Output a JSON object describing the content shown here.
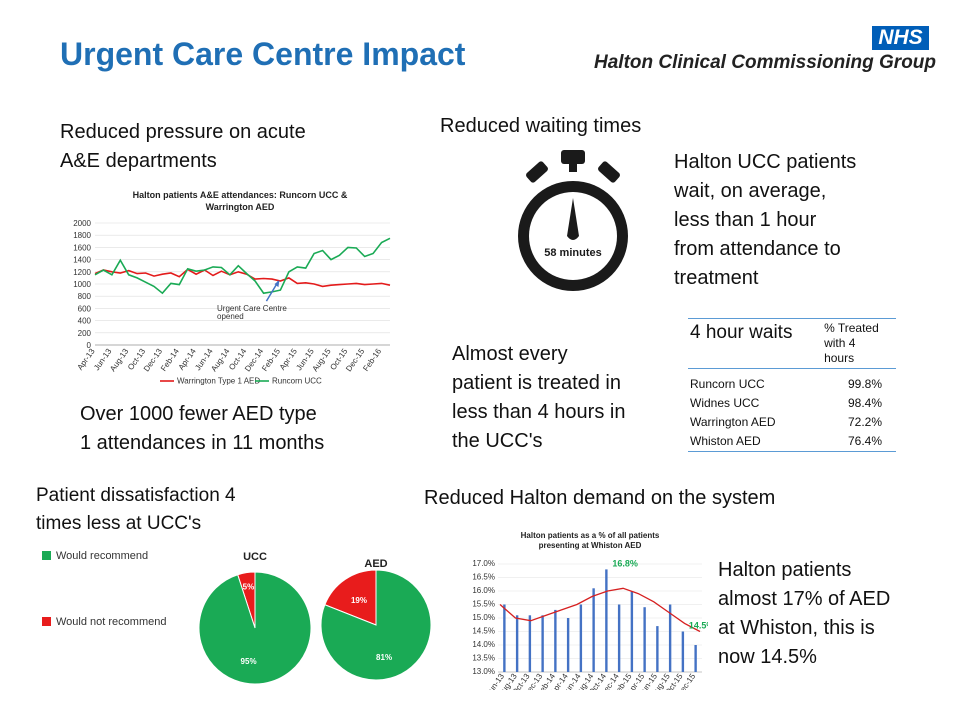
{
  "header": {
    "title": "Urgent Care Centre Impact",
    "nhs_badge": "NHS",
    "org_name": "Halton Clinical Commissioning Group"
  },
  "section1": {
    "heading_lines": [
      "Reduced pressure on acute",
      "A&E departments"
    ],
    "footer_lines": [
      "Over 1000 fewer AED type",
      "1 attendances in 11 months"
    ]
  },
  "section2": {
    "heading": "Reduced waiting times",
    "stopwatch_label": "58 minutes",
    "side_text_lines": [
      "Halton UCC patients",
      "wait, on average,",
      "less than 1 hour",
      "from attendance to",
      "treatment"
    ],
    "almost_lines": [
      "Almost every",
      "patient is treated in",
      "less than 4 hours in",
      "the UCC's"
    ]
  },
  "waits_table": {
    "title": "4 hour waits",
    "col_header_lines": [
      "% Treated",
      "with 4",
      "hours"
    ],
    "rows": [
      {
        "name": "Runcorn UCC",
        "value": "99.8%"
      },
      {
        "name": "Widnes UCC",
        "value": "98.4%"
      },
      {
        "name": "Warrington AED",
        "value": "72.2%"
      },
      {
        "name": "Whiston AED",
        "value": "76.4%"
      }
    ]
  },
  "section3": {
    "heading_lines": [
      "Patient dissatisfaction 4",
      "times less at UCC's"
    ],
    "legend": [
      {
        "label": "Would recommend",
        "color": "#1aaa55"
      },
      {
        "label": "Would not recommend",
        "color": "#e81c1c"
      }
    ]
  },
  "section4": {
    "heading": "Reduced Halton demand on the system",
    "side_text_lines": [
      "Halton patients",
      "almost 17% of AED",
      "at Whiston, this is",
      "now 14.5%"
    ]
  },
  "chart_data": [
    {
      "type": "line",
      "title_lines": [
        "Halton patients A&E attendances: Runcorn UCC &",
        "Warrington AED"
      ],
      "x": [
        "Apr-13",
        "May-13",
        "Jun-13",
        "Jul-13",
        "Aug-13",
        "Sep-13",
        "Oct-13",
        "Nov-13",
        "Dec-13",
        "Jan-14",
        "Feb-14",
        "Mar-14",
        "Apr-14",
        "May-14",
        "Jun-14",
        "Jul-14",
        "Aug-14",
        "Sep-14",
        "Oct-14",
        "Nov-14",
        "Dec-14",
        "Jan-15",
        "Feb-15",
        "Mar-15",
        "Apr-15",
        "May-15",
        "Jun-15",
        "Jul-15",
        "Aug-15",
        "Sep-15",
        "Oct-15",
        "Nov-15",
        "Dec-15",
        "Jan-16",
        "Feb-16",
        "Mar-16"
      ],
      "tick_labels": [
        "Apr-13",
        "Jun-13",
        "Aug-13",
        "Oct-13",
        "Dec-13",
        "Feb-14",
        "Apr-14",
        "Jun-14",
        "Aug-14",
        "Oct-14",
        "Dec-14",
        "Feb-15",
        "Apr-15",
        "Jun-15",
        "Aug-15",
        "Oct-15",
        "Dec-15",
        "Feb-16"
      ],
      "series": [
        {
          "name": "Warrington Type 1 AED",
          "color": "#e31b1b",
          "values": [
            1170,
            1230,
            1200,
            1180,
            1220,
            1170,
            1180,
            1130,
            1160,
            1180,
            1120,
            1240,
            1160,
            1230,
            1140,
            1210,
            1150,
            1200,
            1160,
            1080,
            1090,
            1080,
            1050,
            1100,
            1010,
            1020,
            1000,
            960,
            980,
            990,
            1000,
            1010,
            990,
            1000,
            1010,
            980
          ]
        },
        {
          "name": "Runcorn UCC",
          "color": "#1aaa55",
          "values": [
            1150,
            1230,
            1150,
            1390,
            1150,
            1100,
            1030,
            960,
            850,
            1010,
            990,
            1250,
            1210,
            1230,
            1280,
            1270,
            1150,
            1300,
            1170,
            1050,
            850,
            870,
            900,
            1200,
            1280,
            1260,
            1500,
            1550,
            1400,
            1470,
            1600,
            1590,
            1450,
            1500,
            1680,
            1750
          ]
        }
      ],
      "ylim": [
        0,
        2000
      ],
      "yticks": [
        0,
        200,
        400,
        600,
        800,
        1000,
        1200,
        1400,
        1600,
        1800,
        2000
      ],
      "annotation_lines": [
        "Urgent Care Centre",
        "opened"
      ]
    },
    {
      "type": "pie",
      "title": "UCC",
      "slices": [
        {
          "label": "Would recommend",
          "value": 95,
          "display": "95%"
        },
        {
          "label": "Would not recommend",
          "value": 5,
          "display": "5%"
        }
      ]
    },
    {
      "type": "pie",
      "title": "AED",
      "slices": [
        {
          "label": "Would recommend",
          "value": 81,
          "display": "81%"
        },
        {
          "label": "Would not recommend",
          "value": 19,
          "display": "19%"
        }
      ]
    },
    {
      "type": "bar",
      "title_lines": [
        "Halton patients as a % of all patients",
        "presenting at Whiston AED"
      ],
      "categories": [
        "Jun-13",
        "Aug-13",
        "Oct-13",
        "Dec-13",
        "Feb-14",
        "Apr-14",
        "Jun-14",
        "Aug-14",
        "Oct-14",
        "Dec-14",
        "Feb-15",
        "Apr-15",
        "Jun-15",
        "Aug-15",
        "Oct-15",
        "Dec-15"
      ],
      "bar_values": [
        15.5,
        15.1,
        15.1,
        15.1,
        15.3,
        15.0,
        15.5,
        16.1,
        16.8,
        15.5,
        16.0,
        15.4,
        14.7,
        15.5,
        14.5,
        14.0
      ],
      "trend_values": [
        15.5,
        15.0,
        14.9,
        15.1,
        15.3,
        15.5,
        15.8,
        16.0,
        16.1,
        15.9,
        15.6,
        15.2,
        14.8,
        14.5
      ],
      "callouts": [
        {
          "text": "16.8%",
          "index": 8
        },
        {
          "text": "14.5%",
          "index": 14
        }
      ],
      "ylim": [
        13.0,
        17.0
      ],
      "yticks": [
        "13.0%",
        "13.5%",
        "14.0%",
        "14.5%",
        "15.0%",
        "15.5%",
        "16.0%",
        "16.5%",
        "17.0%"
      ]
    }
  ]
}
